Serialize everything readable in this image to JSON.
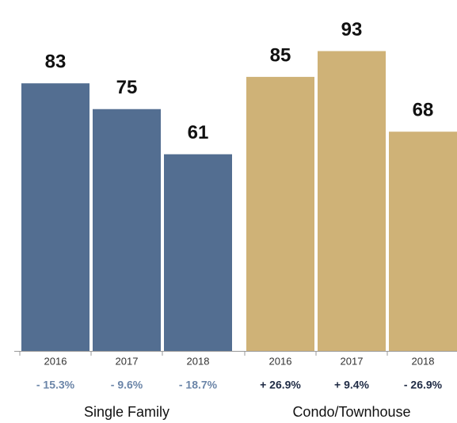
{
  "chart_data": [
    {
      "type": "bar",
      "name": "Single Family",
      "categories": [
        "2016",
        "2017",
        "2018"
      ],
      "values": [
        83,
        75,
        61
      ],
      "changes": [
        "- 15.3%",
        "- 9.6%",
        "- 18.7%"
      ],
      "color": "#536e91",
      "change_color": "#6b85a8"
    },
    {
      "type": "bar",
      "name": "Condo/Townhouse",
      "categories": [
        "2016",
        "2017",
        "2018"
      ],
      "values": [
        85,
        93,
        68
      ],
      "changes": [
        "+ 26.9%",
        "+ 9.4%",
        "- 26.9%"
      ],
      "color": "#cfb277",
      "change_color": "#1f2b45"
    }
  ]
}
